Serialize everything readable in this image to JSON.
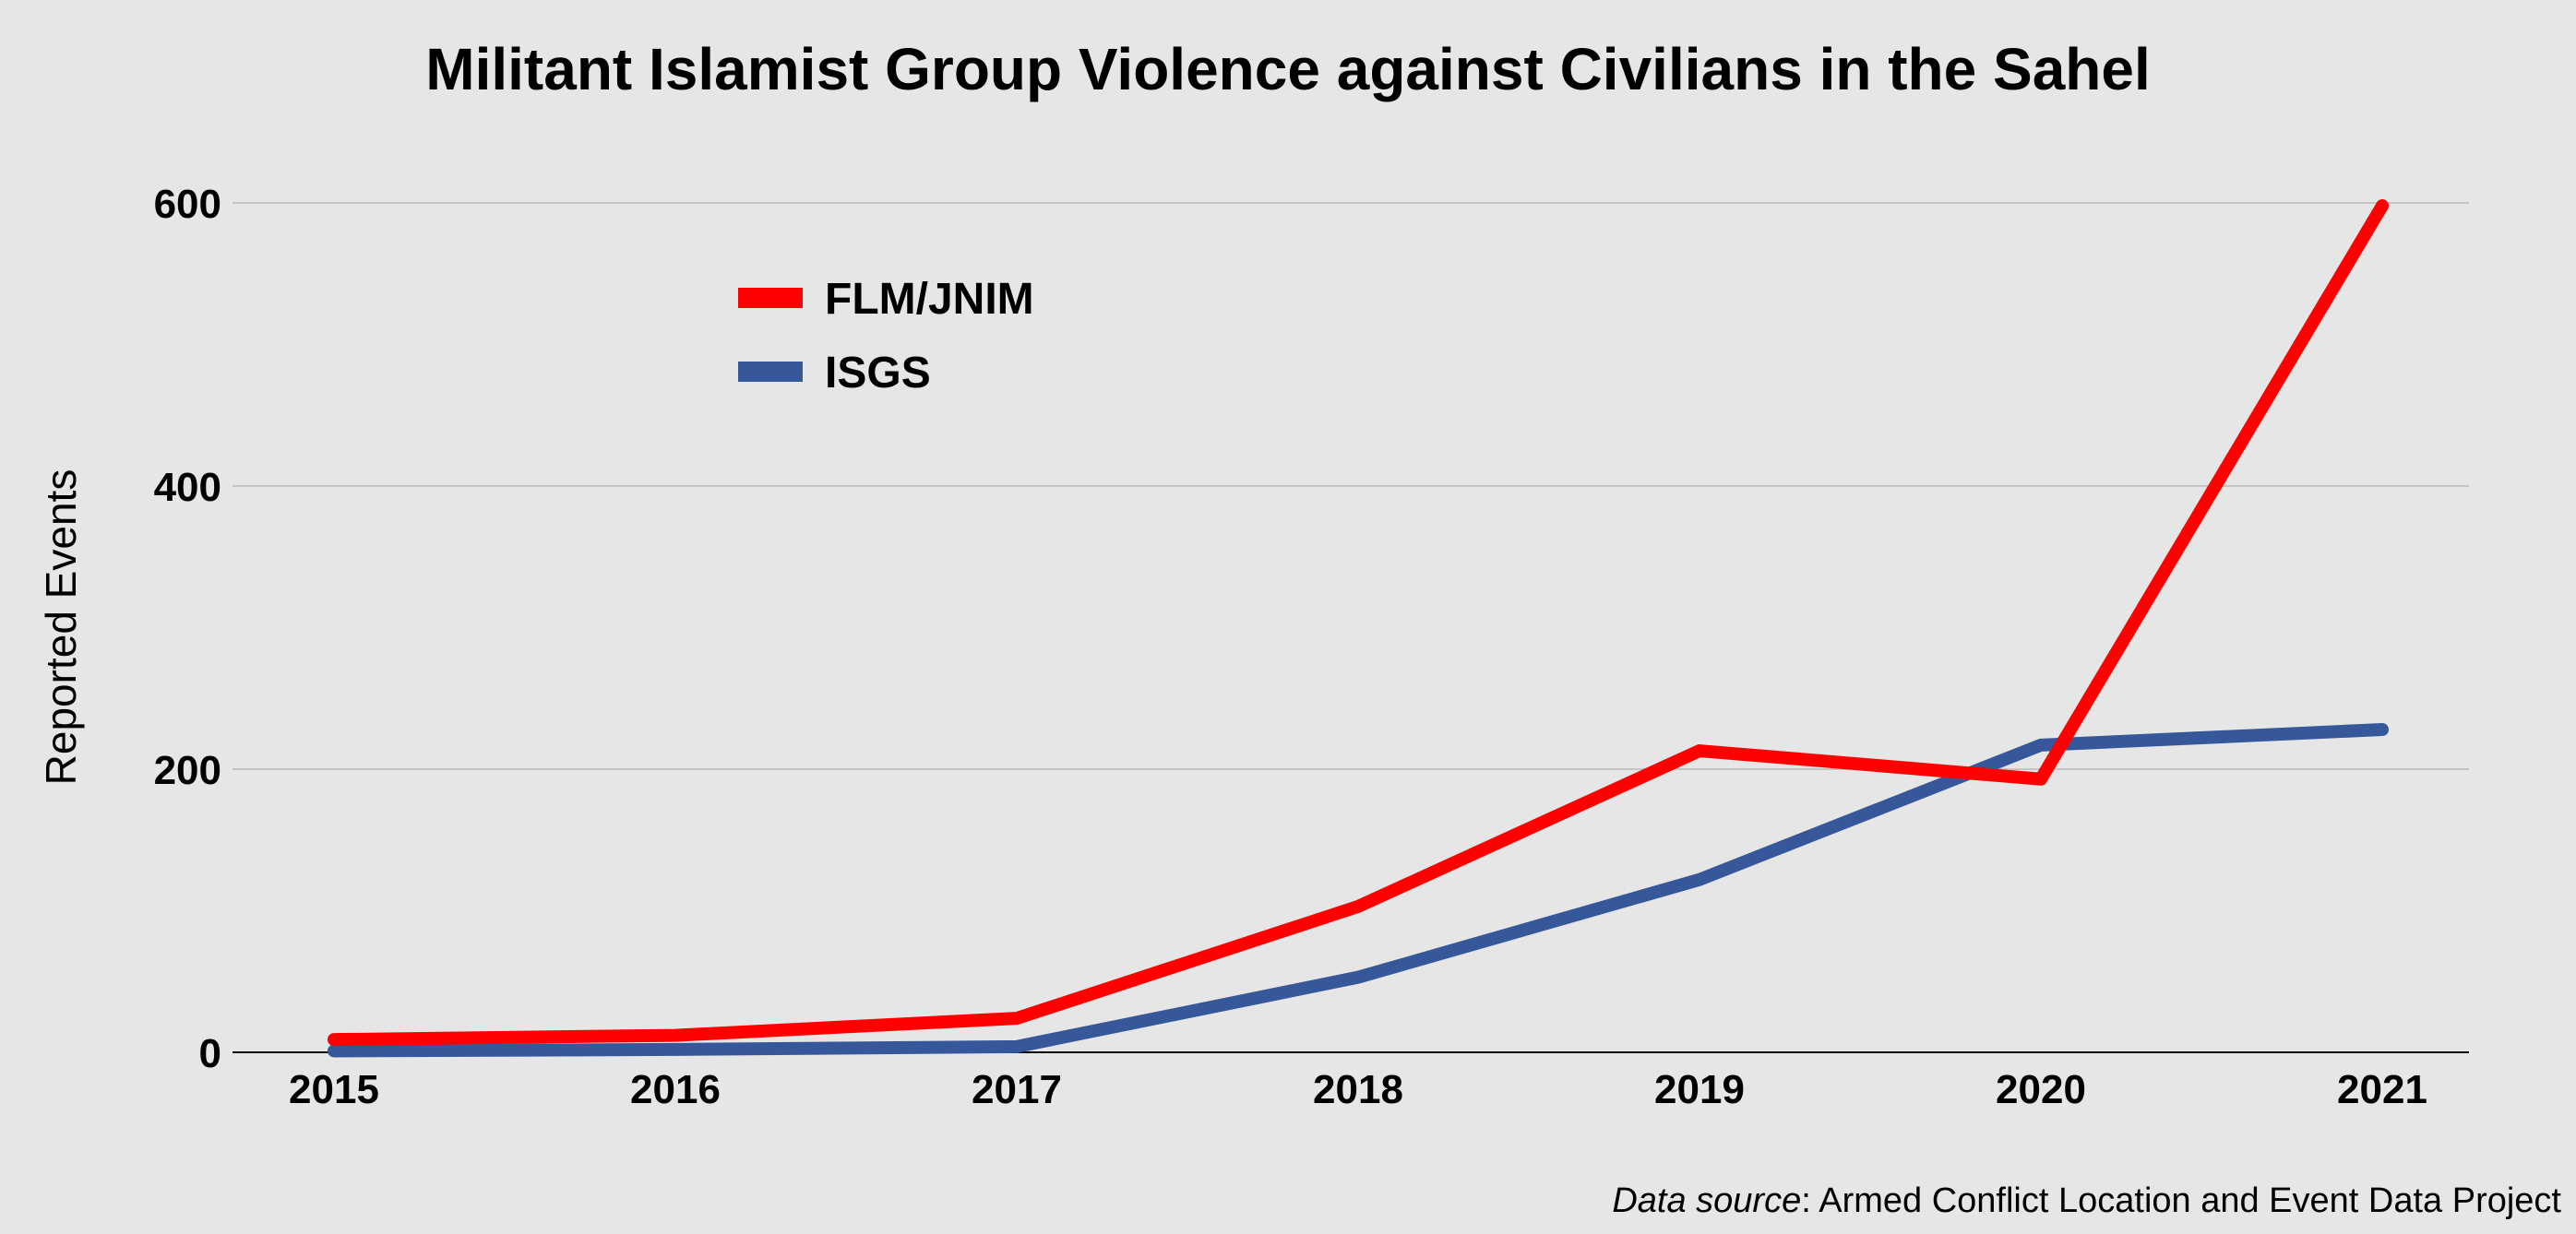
{
  "chart_data": {
    "type": "line",
    "title": "Militant Islamist Group Violence against Civilians in the Sahel",
    "xlabel": "",
    "ylabel": "Reported Events",
    "categories": [
      "2015",
      "2016",
      "2017",
      "2018",
      "2019",
      "2020",
      "2021"
    ],
    "yticks": [
      0,
      200,
      400,
      600
    ],
    "ylim": [
      0,
      600
    ],
    "grid": true,
    "legend_position": "top-left",
    "series": [
      {
        "name": "FLM/JNIM",
        "color": "#ff0000",
        "values": [
          9,
          12,
          24,
          103,
          213,
          193,
          598
        ]
      },
      {
        "name": "ISGS",
        "color": "#36589a",
        "values": [
          1,
          2,
          4,
          53,
          122,
          217,
          228
        ]
      }
    ],
    "source": {
      "label": "Data source",
      "text": ": Armed Conflict Location and Event Data Project"
    }
  }
}
